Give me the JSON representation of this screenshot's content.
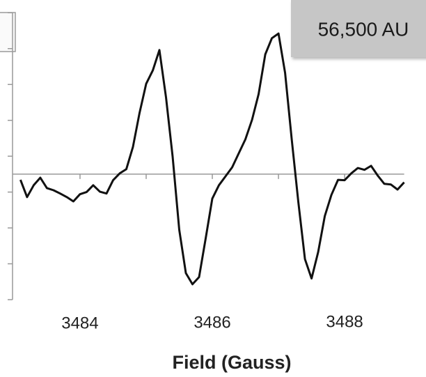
{
  "chart_data": {
    "type": "line",
    "annotation": "56,500 AU",
    "x_label": "Field (Gauss)",
    "x": [
      3483.1,
      3483.2,
      3483.3,
      3483.4,
      3483.5,
      3483.6,
      3483.7,
      3483.8,
      3483.9,
      3484.0,
      3484.1,
      3484.2,
      3484.3,
      3484.4,
      3484.5,
      3484.6,
      3484.7,
      3484.8,
      3484.9,
      3485.0,
      3485.1,
      3485.2,
      3485.3,
      3485.4,
      3485.5,
      3485.6,
      3485.7,
      3485.8,
      3485.9,
      3486.0,
      3486.1,
      3486.2,
      3486.3,
      3486.4,
      3486.5,
      3486.6,
      3486.7,
      3486.8,
      3486.9,
      3487.0,
      3487.1,
      3487.2,
      3487.3,
      3487.4,
      3487.5,
      3487.6,
      3487.7,
      3487.8,
      3487.9,
      3488.0,
      3488.1,
      3488.2,
      3488.3,
      3488.4,
      3488.5,
      3488.6,
      3488.7,
      3488.8,
      3488.9
    ],
    "values": [
      -0.16,
      -0.64,
      -0.31,
      -0.1,
      -0.39,
      -0.45,
      -0.54,
      -0.64,
      -0.76,
      -0.56,
      -0.5,
      -0.31,
      -0.49,
      -0.54,
      -0.17,
      0.02,
      0.14,
      0.76,
      1.71,
      2.52,
      2.89,
      3.46,
      2.14,
      0.49,
      -1.55,
      -2.76,
      -3.07,
      -2.87,
      -1.79,
      -0.68,
      -0.31,
      -0.06,
      0.19,
      0.58,
      0.97,
      1.51,
      2.23,
      3.34,
      3.79,
      3.92,
      2.82,
      0.97,
      -0.78,
      -2.37,
      -2.91,
      -2.17,
      -1.17,
      -0.58,
      -0.16,
      -0.17,
      0.02,
      0.17,
      0.12,
      0.23,
      -0.04,
      -0.27,
      -0.29,
      -0.43,
      -0.23
    ],
    "color": "#111111",
    "xlim": [
      3482.98,
      3489.23
    ],
    "xticks": [
      3484,
      3486,
      3488
    ],
    "x_minor_ticks": [
      3485,
      3487
    ],
    "ylim": [
      -3.5,
      4.7
    ],
    "yticks": [
      -3.5,
      -2.5,
      -1.5,
      -0.5,
      0.5,
      1.5,
      2.5,
      3.5,
      4.5
    ]
  }
}
